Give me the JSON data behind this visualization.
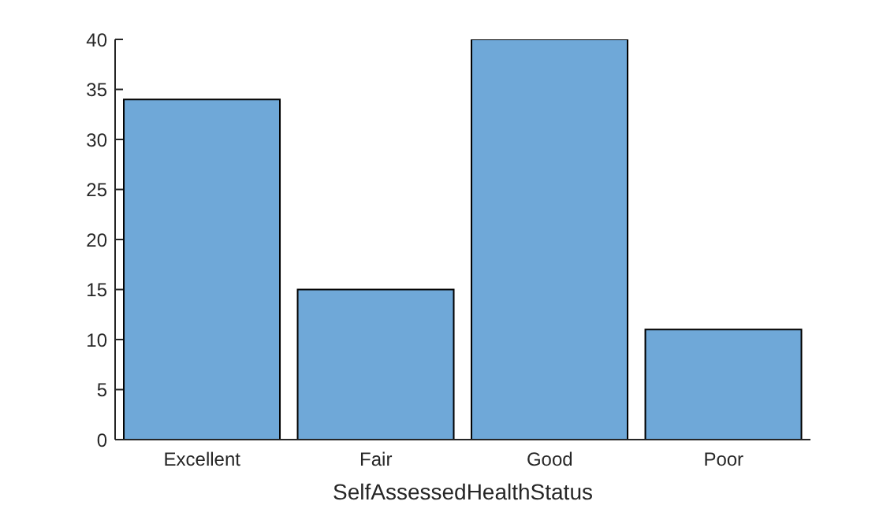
{
  "chart_data": {
    "type": "bar",
    "xlabel": "SelfAssessedHealthStatus",
    "categories": [
      "Excellent",
      "Fair",
      "Good",
      "Poor"
    ],
    "values": [
      34,
      15,
      40,
      11
    ],
    "color": "#6fa8d8",
    "ylim": [
      0,
      40
    ],
    "yticks": [
      0,
      5,
      10,
      15,
      20,
      25,
      30,
      35,
      40
    ],
    "grid": false,
    "legend": false
  }
}
